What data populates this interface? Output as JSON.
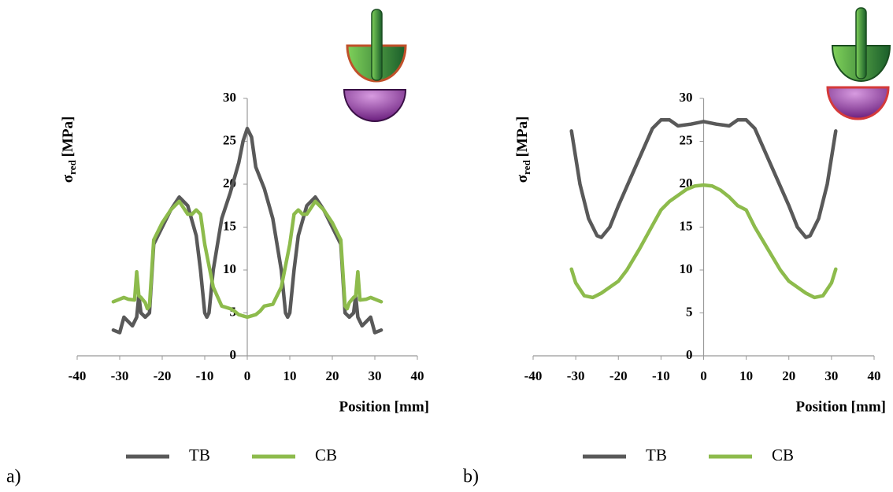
{
  "chart_data": [
    {
      "type": "line",
      "panel_label": "a)",
      "xlabel": "Position [mm]",
      "ylabel": "σ",
      "ylabel_sub": "red",
      "ylabel_unit": "[MPa]",
      "xlim": [
        -40,
        40
      ],
      "ylim": [
        0,
        30
      ],
      "xticks": [
        -40,
        -30,
        -20,
        -10,
        0,
        10,
        20,
        30,
        40
      ],
      "yticks": [
        0,
        5,
        10,
        15,
        20,
        25,
        30
      ],
      "series": [
        {
          "name": "TB",
          "color": "#595959",
          "x": [
            -31.5,
            -30,
            -29,
            -28,
            -27,
            -26,
            -25.5,
            -25,
            -24,
            -23,
            -22,
            -20,
            -18,
            -16,
            -14,
            -12,
            -11,
            -10,
            -9.5,
            -9,
            -8,
            -6,
            -4,
            -2,
            -1,
            0,
            1,
            2,
            4,
            6,
            8,
            9,
            9.5,
            10,
            11,
            12,
            14,
            16,
            18,
            20,
            22,
            23,
            24,
            25,
            25.5,
            26,
            27,
            28,
            29,
            30,
            31.5
          ],
          "values": [
            3,
            2.7,
            4.5,
            4,
            3.5,
            4.5,
            7,
            5,
            4.5,
            5,
            13,
            15,
            17,
            18.5,
            17.5,
            14,
            10,
            5,
            4.5,
            5,
            10,
            16,
            19,
            22.5,
            25,
            26.5,
            25.5,
            22,
            19.5,
            16,
            10,
            5,
            4.5,
            5,
            10,
            14,
            17.5,
            18.5,
            17,
            15,
            13,
            5,
            4.5,
            5,
            7,
            4.5,
            3.5,
            4,
            4.5,
            2.7,
            3
          ]
        },
        {
          "name": "CB",
          "color": "#8dbb4c",
          "x": [
            -31.5,
            -29,
            -28,
            -26.5,
            -26,
            -25.5,
            -25,
            -24,
            -23.5,
            -23,
            -22,
            -20,
            -18,
            -16,
            -14,
            -13,
            -12,
            -11,
            -10,
            -8,
            -6,
            -4,
            -3,
            -2,
            0,
            2,
            3,
            4,
            6,
            8,
            10,
            11,
            12,
            13,
            14,
            16,
            18,
            20,
            22,
            23,
            23.5,
            24,
            25,
            25.5,
            26,
            26.5,
            28,
            29,
            31.5
          ],
          "values": [
            6.3,
            6.8,
            6.6,
            6.5,
            9.8,
            7,
            6.8,
            6.2,
            5.5,
            5.8,
            13.5,
            15.5,
            17,
            18,
            16.5,
            16.5,
            17,
            16.5,
            13,
            8,
            5.8,
            5.5,
            5.2,
            4.8,
            4.5,
            4.8,
            5.2,
            5.8,
            6,
            8,
            13,
            16.5,
            17,
            16.5,
            16.5,
            18,
            17,
            15.5,
            13.5,
            5.8,
            5.5,
            6.2,
            6.8,
            7,
            9.8,
            6.5,
            6.6,
            6.8,
            6.3
          ]
        }
      ]
    },
    {
      "type": "line",
      "panel_label": "b)",
      "xlabel": "Position [mm]",
      "ylabel": "σ",
      "ylabel_sub": "red",
      "ylabel_unit": "[MPa]",
      "xlim": [
        -40,
        40
      ],
      "ylim": [
        0,
        30
      ],
      "xticks": [
        -40,
        -30,
        -20,
        -10,
        0,
        10,
        20,
        30,
        40
      ],
      "yticks": [
        0,
        5,
        10,
        15,
        20,
        25,
        30
      ],
      "series": [
        {
          "name": "TB",
          "color": "#595959",
          "x": [
            -31,
            -29,
            -27,
            -25,
            -24,
            -22,
            -20,
            -16,
            -12,
            -10,
            -8,
            -6,
            -3,
            0,
            3,
            6,
            8,
            10,
            12,
            16,
            20,
            22,
            24,
            25,
            27,
            29,
            31
          ],
          "values": [
            26.2,
            20,
            16,
            14,
            13.8,
            15,
            17.5,
            22,
            26.5,
            27.5,
            27.5,
            26.8,
            27,
            27.3,
            27,
            26.8,
            27.5,
            27.5,
            26.5,
            22,
            17.5,
            15,
            13.8,
            14,
            16,
            20,
            26.2
          ]
        },
        {
          "name": "CB",
          "color": "#8dbb4c",
          "x": [
            -31,
            -30,
            -28,
            -26,
            -24,
            -22,
            -20,
            -18,
            -15,
            -12,
            -10,
            -8,
            -6,
            -4,
            -2,
            0,
            2,
            4,
            6,
            8,
            10,
            12,
            15,
            18,
            20,
            22,
            24,
            26,
            28,
            30,
            31
          ],
          "values": [
            10.1,
            8.5,
            7,
            6.8,
            7.3,
            8,
            8.7,
            10,
            12.5,
            15.2,
            17,
            18,
            18.7,
            19.4,
            19.8,
            19.9,
            19.8,
            19.3,
            18.5,
            17.5,
            17,
            15,
            12.5,
            10,
            8.7,
            8,
            7.3,
            6.8,
            7,
            8.5,
            10.1
          ]
        }
      ]
    }
  ]
}
